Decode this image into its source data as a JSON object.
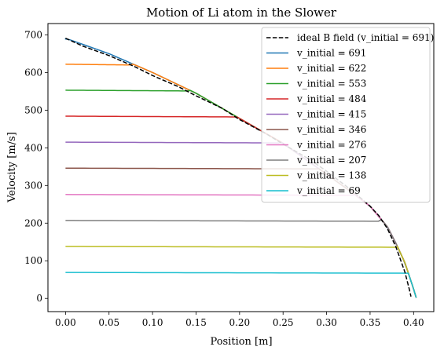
{
  "chart_data": {
    "type": "line",
    "title": "Motion of Li atom in the Slower",
    "xlabel": "Position [m]",
    "ylabel": "Velocity [m/s]",
    "xlim": [
      -0.0202,
      0.4232
    ],
    "ylim": [
      -35,
      730
    ],
    "xticks": [
      0.0,
      0.05,
      0.1,
      0.15,
      0.2,
      0.25,
      0.3,
      0.35,
      0.4
    ],
    "xtick_labels": [
      "0.00",
      "0.05",
      "0.10",
      "0.15",
      "0.20",
      "0.25",
      "0.30",
      "0.35",
      "0.40"
    ],
    "yticks": [
      0,
      100,
      200,
      300,
      400,
      500,
      600,
      700
    ],
    "ytick_labels": [
      "0",
      "100",
      "200",
      "300",
      "400",
      "500",
      "600",
      "700"
    ],
    "grid": false,
    "legend_position": "top-right",
    "ideal": {
      "name": "ideal B field (v_initial = 691)",
      "color": "#000000",
      "dash": true,
      "x": [
        0.0,
        0.02,
        0.05,
        0.08,
        0.1,
        0.13,
        0.15,
        0.18,
        0.2,
        0.23,
        0.25,
        0.28,
        0.3,
        0.33,
        0.35,
        0.36,
        0.37,
        0.38,
        0.39,
        0.395,
        0.397
      ],
      "y": [
        691,
        670,
        645,
        615,
        592,
        562,
        538,
        505,
        475,
        438,
        410,
        370,
        338,
        285,
        245,
        220,
        185,
        135,
        70,
        25,
        5
      ]
    },
    "series": [
      {
        "name": "v_initial = 691",
        "color": "#1f77b4",
        "v0": 691,
        "x0": 0.0
      },
      {
        "name": "v_initial = 622",
        "color": "#ff7f0e",
        "v0": 622,
        "x0": 0.073
      },
      {
        "name": "v_initial = 553",
        "color": "#2ca02c",
        "v0": 553,
        "x0": 0.14
      },
      {
        "name": "v_initial = 484",
        "color": "#d62728",
        "v0": 484,
        "x0": 0.195
      },
      {
        "name": "v_initial = 415",
        "color": "#9467bd",
        "v0": 415,
        "x0": 0.245
      },
      {
        "name": "v_initial = 346",
        "color": "#8c564b",
        "v0": 346,
        "x0": 0.29
      },
      {
        "name": "v_initial = 276",
        "color": "#e377c2",
        "v0": 276,
        "x0": 0.33
      },
      {
        "name": "v_initial = 207",
        "color": "#7f7f7f",
        "v0": 207,
        "x0": 0.36
      },
      {
        "name": "v_initial = 138",
        "color": "#bcbd22",
        "v0": 138,
        "x0": 0.381
      },
      {
        "name": "v_initial = 69",
        "color": "#17becf",
        "v0": 69,
        "x0": 0.394
      }
    ],
    "deceleration_curve": {
      "x": [
        0.0,
        0.05,
        0.1,
        0.15,
        0.2,
        0.25,
        0.3,
        0.33,
        0.35,
        0.37,
        0.38,
        0.39,
        0.395,
        0.4,
        0.403
      ],
      "y": [
        691,
        650,
        600,
        545,
        478,
        412,
        330,
        280,
        245,
        190,
        145,
        95,
        60,
        25,
        2
      ]
    }
  }
}
